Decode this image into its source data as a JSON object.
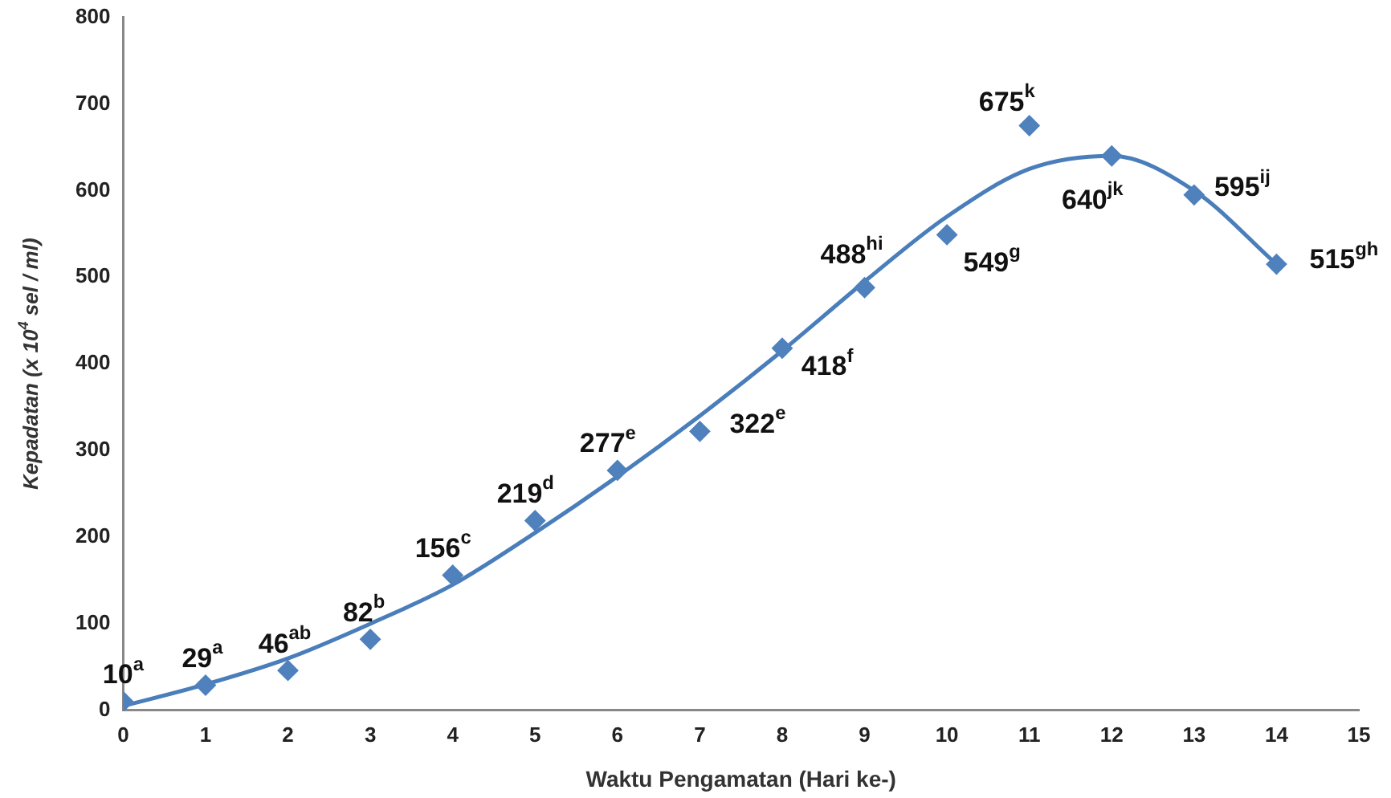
{
  "chart_data": {
    "type": "scatter",
    "xlabel": "Waktu Pengamatan (Hari ke-)",
    "ylabel": "Kepadatan (x 10$^{4}$ sel / ml)",
    "x": [
      0,
      1,
      2,
      3,
      4,
      5,
      6,
      7,
      8,
      9,
      10,
      11,
      12,
      13,
      14
    ],
    "xlim": [
      0,
      15
    ],
    "xticks": [
      0,
      1,
      2,
      3,
      4,
      5,
      6,
      7,
      8,
      9,
      10,
      11,
      12,
      13,
      14,
      15
    ],
    "ylim": [
      0,
      800
    ],
    "yticks": [
      0,
      100,
      200,
      300,
      400,
      500,
      600,
      700,
      800
    ],
    "grid": false,
    "legend": false,
    "marker": "diamond",
    "series": [
      {
        "type": "scatter",
        "color": "#4f81bd",
        "values": [
          10,
          29,
          46,
          82,
          156,
          219,
          277,
          322,
          418,
          488,
          549,
          675,
          640,
          595,
          515
        ],
        "value_labels": [
          "10$^{a}$",
          "29$^{a}$",
          "46$^{ab}$",
          "82$^{b}$",
          "156$^{c}$",
          "219$^{d}$",
          "277$^{e}$",
          "322$^{e}$",
          "418$^{f}$",
          "488$^{hi}$",
          "549$^{g}$",
          "675$^{k}$",
          "640$^{jk}$",
          "595$^{ij}$",
          "515$^{gh}$"
        ]
      },
      {
        "type": "line",
        "color": "#4a7ebb",
        "marker": "none",
        "x": [
          0,
          1,
          2,
          3,
          4,
          5,
          6,
          7,
          8,
          9,
          10,
          11,
          12,
          13,
          14
        ],
        "values": [
          5,
          30,
          60,
          100,
          145,
          205,
          270,
          340,
          415,
          495,
          570,
          625,
          640,
          600,
          515
        ]
      }
    ]
  }
}
